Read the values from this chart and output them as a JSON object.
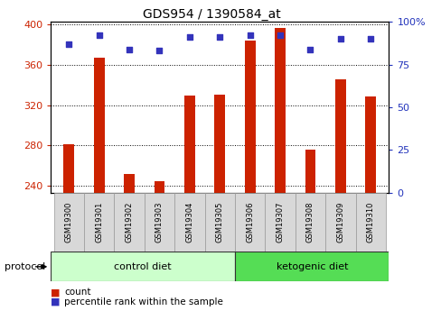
{
  "title": "GDS954 / 1390584_at",
  "samples": [
    "GSM19300",
    "GSM19301",
    "GSM19302",
    "GSM19303",
    "GSM19304",
    "GSM19305",
    "GSM19306",
    "GSM19307",
    "GSM19308",
    "GSM19309",
    "GSM19310"
  ],
  "counts": [
    281,
    367,
    252,
    245,
    330,
    331,
    384,
    397,
    276,
    346,
    329
  ],
  "percentile_ranks": [
    87,
    92,
    84,
    83,
    91,
    91,
    92,
    92,
    84,
    90,
    90
  ],
  "ylim_left": [
    233,
    403
  ],
  "ylim_right": [
    0,
    100
  ],
  "yticks_left": [
    240,
    280,
    320,
    360,
    400
  ],
  "yticks_right": [
    0,
    25,
    50,
    75,
    100
  ],
  "ytick_labels_right": [
    "0",
    "25",
    "50",
    "75",
    "100%"
  ],
  "bar_color": "#cc2200",
  "dot_color": "#3333bb",
  "grid_color": "#000000",
  "bg_color": "#ffffff",
  "bar_bottom": 233,
  "control_label": "control diet",
  "ketogenic_label": "ketogenic diet",
  "control_bg": "#ccffcc",
  "ketogenic_bg": "#55dd55",
  "protocol_label": "protocol",
  "legend_count_label": "count",
  "legend_percentile_label": "percentile rank within the sample",
  "tick_label_color_left": "#cc2200",
  "tick_label_color_right": "#2233bb",
  "figsize": [
    4.89,
    3.45
  ],
  "dpi": 100
}
